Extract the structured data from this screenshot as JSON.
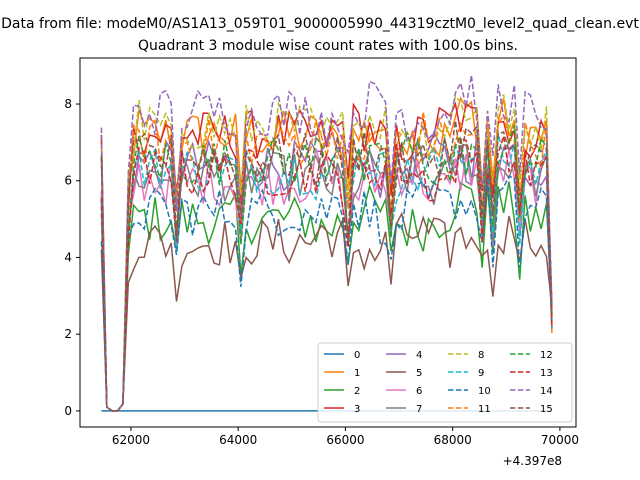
{
  "chart_data": {
    "type": "line",
    "suptitle": "Data from file: modeM0/AS1A13_059T01_9000005990_44319cztM0_level2_quad_clean.evt",
    "title": "Quadrant 3 module wise count rates with 100.0s bins.",
    "xlabel": "",
    "ylabel": "",
    "x_offset_label": "+4.397e8",
    "xlim": [
      61050,
      70300
    ],
    "ylim": [
      -0.42,
      9.2
    ],
    "xticks": [
      62000,
      64000,
      66000,
      68000,
      70000
    ],
    "xtick_labels": [
      "62000",
      "64000",
      "66000",
      "68000",
      "70000"
    ],
    "yticks": [
      0,
      2,
      4,
      6,
      8
    ],
    "ytick_labels": [
      "0",
      "2",
      "4",
      "6",
      "8"
    ],
    "grid": false,
    "legend_position": "lower-right",
    "legend_columns": 4,
    "colors": [
      "#1f77b4",
      "#ff7f0e",
      "#2ca02c",
      "#d62728",
      "#9467bd",
      "#8c564b",
      "#e377c2",
      "#7f7f7f",
      "#bcbd22",
      "#17becf"
    ],
    "series": [
      {
        "name": "0",
        "style": "solid",
        "color_index": 0
      },
      {
        "name": "1",
        "style": "solid",
        "color_index": 1,
        "level": 7.2
      },
      {
        "name": "2",
        "style": "solid",
        "color_index": 2,
        "level": 5.0
      },
      {
        "name": "3",
        "style": "solid",
        "color_index": 3,
        "level": 7.2
      },
      {
        "name": "4",
        "style": "solid",
        "color_index": 4,
        "level": 6.4
      },
      {
        "name": "5",
        "style": "solid",
        "color_index": 5,
        "level": 4.4
      },
      {
        "name": "6",
        "style": "solid",
        "color_index": 6,
        "level": 6.0
      },
      {
        "name": "7",
        "style": "solid",
        "color_index": 7,
        "level": 6.1
      },
      {
        "name": "8",
        "style": "dashed",
        "color_index": 8,
        "level": 7.4
      },
      {
        "name": "9",
        "style": "dashed",
        "color_index": 9,
        "level": 6.3
      },
      {
        "name": "10",
        "style": "dashed",
        "color_index": 0,
        "level": 5.2
      },
      {
        "name": "11",
        "style": "dashed",
        "color_index": 1,
        "level": 7.0
      },
      {
        "name": "12",
        "style": "dashed",
        "color_index": 2,
        "level": 6.5
      },
      {
        "name": "13",
        "style": "dashed",
        "color_index": 3,
        "level": 6.2
      },
      {
        "name": "14",
        "style": "dashed",
        "color_index": 4,
        "level": 7.8
      },
      {
        "name": "15",
        "style": "dashed",
        "color_index": 5,
        "level": 6.6
      }
    ],
    "x_start": 61450,
    "x_step": 100,
    "n_points": 85,
    "shape_profile": {
      "0": 0.96,
      "1": 0.1,
      "2": 0.0,
      "3": 0.0,
      "4": 0.18,
      "5": 0.78,
      "6": 0.98,
      "7": 1.02
    },
    "dip_indices": [
      14,
      26,
      46,
      54,
      71,
      73,
      78
    ],
    "dip_factor": 0.82
  }
}
